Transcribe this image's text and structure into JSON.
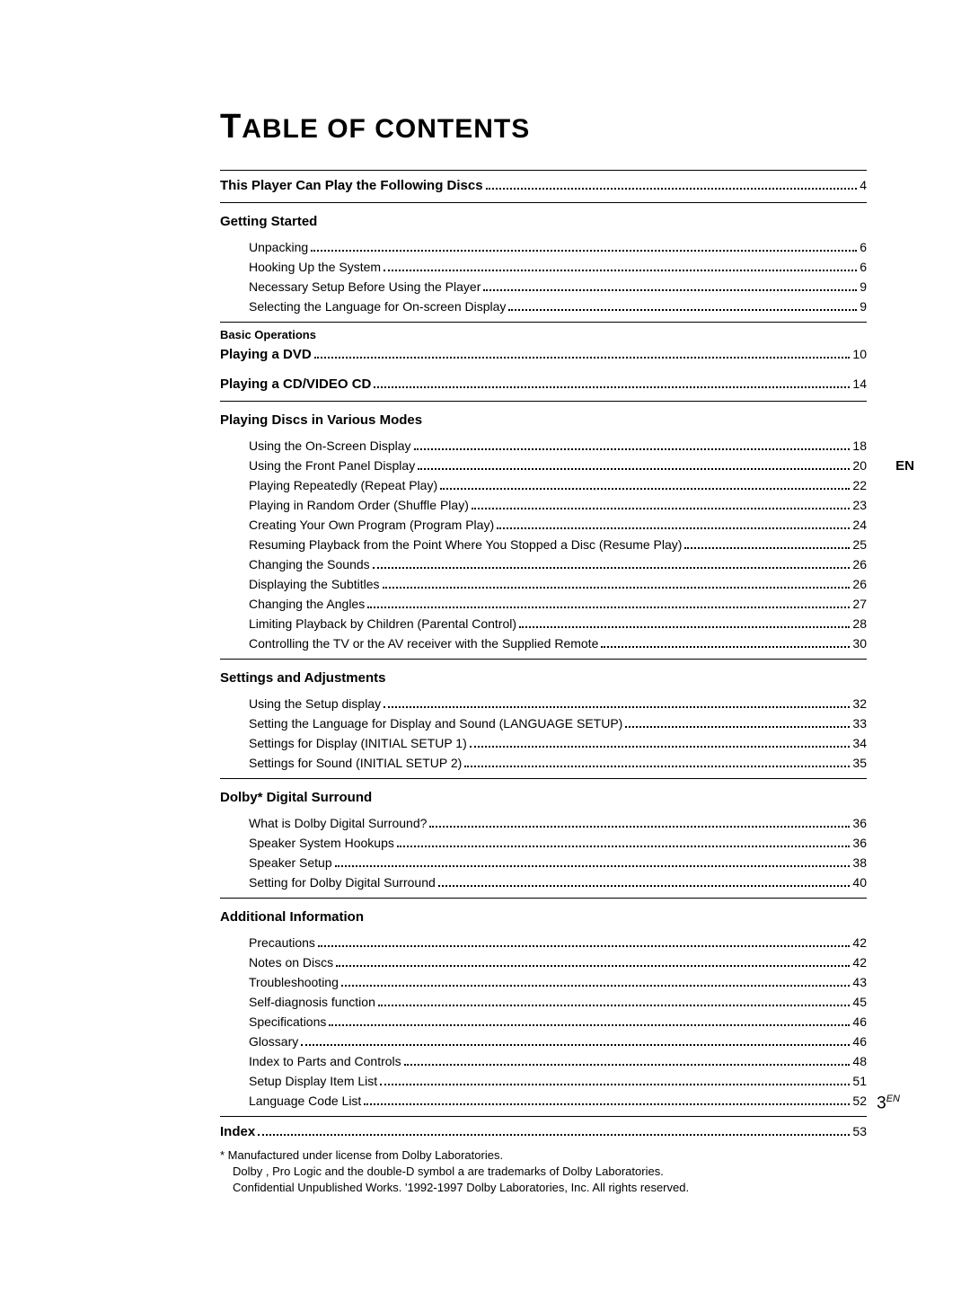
{
  "title": "TABLE OF CONTENTS",
  "lang_tab": "EN",
  "page_number": "3",
  "page_number_sup": "EN",
  "sections": {
    "this_player": {
      "text": "This Player Can Play the Following Discs",
      "page": "4"
    },
    "getting_started": {
      "header": "Getting Started",
      "items": [
        {
          "text": "Unpacking",
          "page": "6"
        },
        {
          "text": "Hooking Up the System",
          "page": "6"
        },
        {
          "text": "Necessary Setup Before Using the Player",
          "page": "9"
        },
        {
          "text": "Selecting the Language for On-screen Display",
          "page": "9"
        }
      ]
    },
    "basic_operations": {
      "header": "Basic Operations"
    },
    "playing_dvd": {
      "text": "Playing a DVD",
      "page": "10"
    },
    "playing_cd": {
      "text": "Playing a CD/VIDEO CD",
      "page": "14"
    },
    "various_modes": {
      "header": "Playing Discs in Various Modes",
      "items": [
        {
          "text": "Using the On-Screen Display",
          "page": "18"
        },
        {
          "text": "Using the Front Panel Display",
          "page": "20"
        },
        {
          "text": "Playing Repeatedly (Repeat Play)",
          "page": "22"
        },
        {
          "text": "Playing in Random Order (Shuffle Play)",
          "page": "23"
        },
        {
          "text": "Creating Your Own Program (Program Play)",
          "page": "24"
        },
        {
          "text": "Resuming Playback from the Point Where You Stopped a Disc (Resume Play)",
          "page": "25"
        },
        {
          "text": "Changing the Sounds",
          "page": "26"
        },
        {
          "text": "Displaying the Subtitles",
          "page": "26"
        },
        {
          "text": "Changing the Angles",
          "page": "27"
        },
        {
          "text": "Limiting Playback by Children (Parental Control)",
          "page": "28"
        },
        {
          "text": "Controlling the TV or the AV receiver with the Supplied Remote",
          "page": "30"
        }
      ]
    },
    "settings_adjustments": {
      "header": "Settings and Adjustments",
      "items": [
        {
          "text": "Using the Setup display",
          "page": "32"
        },
        {
          "text": "Setting the Language for Display and Sound (LANGUAGE SETUP)",
          "page": "33"
        },
        {
          "text": "Settings for Display (INITIAL SETUP 1)",
          "page": "34"
        },
        {
          "text": "Settings for Sound (INITIAL SETUP 2)",
          "page": "35"
        }
      ]
    },
    "dolby": {
      "header": "Dolby*  Digital Surround",
      "items": [
        {
          "text": "What is Dolby Digital Surround?",
          "page": "36"
        },
        {
          "text": "Speaker System Hookups",
          "page": "36"
        },
        {
          "text": "Speaker Setup",
          "page": "38"
        },
        {
          "text": "Setting for Dolby Digital Surround",
          "page": "40"
        }
      ]
    },
    "additional": {
      "header": "Additional Information",
      "items": [
        {
          "text": "Precautions",
          "page": "42"
        },
        {
          "text": "Notes on Discs",
          "page": "42"
        },
        {
          "text": "Troubleshooting",
          "page": "43"
        },
        {
          "text": "Self-diagnosis function",
          "page": "45"
        },
        {
          "text": "Specifications",
          "page": "46"
        },
        {
          "text": "Glossary",
          "page": "46"
        },
        {
          "text": "Index to Parts and Controls",
          "page": "48"
        },
        {
          "text": "Setup Display Item List",
          "page": "51"
        },
        {
          "text": "Language Code List",
          "page": "52"
        }
      ]
    },
    "index": {
      "text": "Index",
      "page": "53"
    }
  },
  "footnote": {
    "line1": "*  Manufactured under license from Dolby Laboratories.",
    "line2": "Dolby ,  Pro Logic  and the double-D symbol    a    are trademarks of Dolby Laboratories.",
    "line3": "Confidential Unpublished Works.  '1992-1997 Dolby Laboratories, Inc.  All rights reserved."
  }
}
